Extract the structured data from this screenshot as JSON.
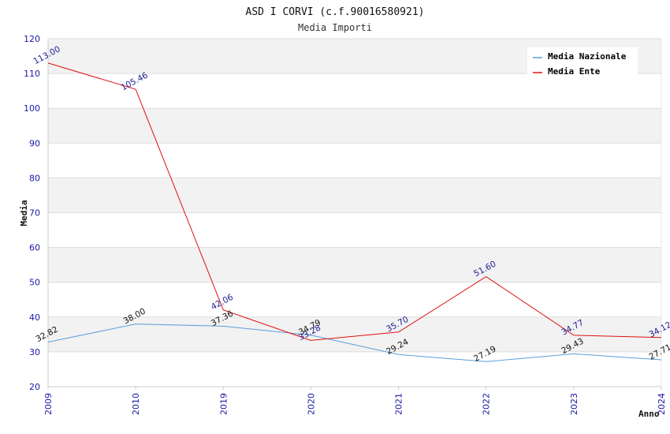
{
  "chart_data": {
    "type": "line",
    "title": "ASD I CORVI (c.f.90016580921)",
    "subtitle": "Media Importi",
    "xlabel": "Anno",
    "ylabel": "Media",
    "ylim": [
      20,
      120
    ],
    "yticks": [
      "20",
      "30",
      "40",
      "50",
      "60",
      "70",
      "80",
      "90",
      "100",
      "110",
      "120"
    ],
    "categories": [
      "2009",
      "2010",
      "2019",
      "2020",
      "2021",
      "2022",
      "2023",
      "2024"
    ],
    "grid": true,
    "legend_position": "top-right",
    "series": [
      {
        "name": "Media Nazionale",
        "color": "#5a9fdc",
        "values": [
          32.82,
          38.0,
          37.36,
          34.79,
          29.24,
          27.19,
          29.43,
          27.71
        ],
        "labels": [
          "32.82",
          "38.00",
          "37.36",
          "34.79",
          "29.24",
          "27.19",
          "29.43",
          "27.71"
        ]
      },
      {
        "name": "Media Ente",
        "color": "#e01010",
        "values": [
          113.0,
          105.46,
          42.06,
          33.28,
          35.7,
          51.6,
          34.77,
          34.12
        ],
        "labels": [
          "113.00",
          "105.46",
          "42.06",
          "33.28",
          "35.70",
          "51.60",
          "34.77",
          "34.12"
        ]
      }
    ]
  }
}
